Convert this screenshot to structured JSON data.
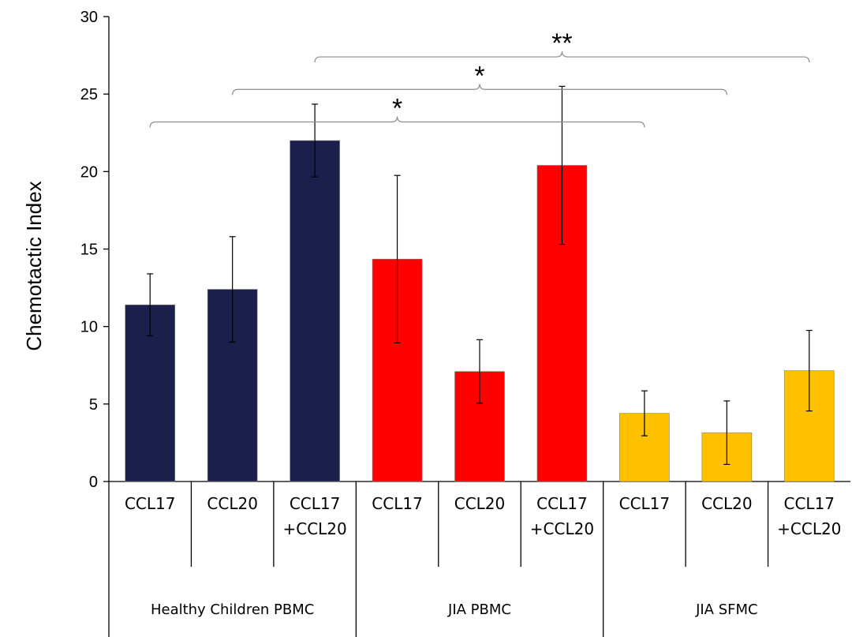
{
  "chart_data": {
    "type": "bar",
    "ylabel": "Chemotactic Index",
    "ylim": [
      0,
      30
    ],
    "yticks": [
      0,
      5,
      10,
      15,
      20,
      25,
      30
    ],
    "grid": false,
    "groups": [
      {
        "name": "Healthy Children PBMC",
        "color": "#1b1f4b",
        "bars": [
          {
            "label": [
              "CCL17"
            ],
            "value": 11.4,
            "error": 2.0
          },
          {
            "label": [
              "CCL20"
            ],
            "value": 12.4,
            "error": 3.4
          },
          {
            "label": [
              "CCL17",
              "+CCL20"
            ],
            "value": 22.0,
            "error": 2.35
          }
        ]
      },
      {
        "name": "JIA PBMC",
        "color": "#ff0000",
        "bars": [
          {
            "label": [
              "CCL17"
            ],
            "value": 14.35,
            "error": 5.4
          },
          {
            "label": [
              "CCL20"
            ],
            "value": 7.1,
            "error": 2.05
          },
          {
            "label": [
              "CCL17",
              "+CCL20"
            ],
            "value": 20.4,
            "error": 5.1
          }
        ]
      },
      {
        "name": "JIA SFMC",
        "color": "#ffc000",
        "bars": [
          {
            "label": [
              "CCL17"
            ],
            "value": 4.4,
            "error": 1.45
          },
          {
            "label": [
              "CCL20"
            ],
            "value": 3.15,
            "error": 2.05
          },
          {
            "label": [
              "CCL17",
              "+CCL20"
            ],
            "value": 7.15,
            "error": 2.6
          }
        ]
      }
    ],
    "significance": [
      {
        "from_bar": 0,
        "to_bar": 6,
        "label": "*",
        "y": 23.2
      },
      {
        "from_bar": 1,
        "to_bar": 7,
        "label": "*",
        "y": 25.3
      },
      {
        "from_bar": 2,
        "to_bar": 8,
        "label": "**",
        "y": 27.4
      }
    ]
  }
}
